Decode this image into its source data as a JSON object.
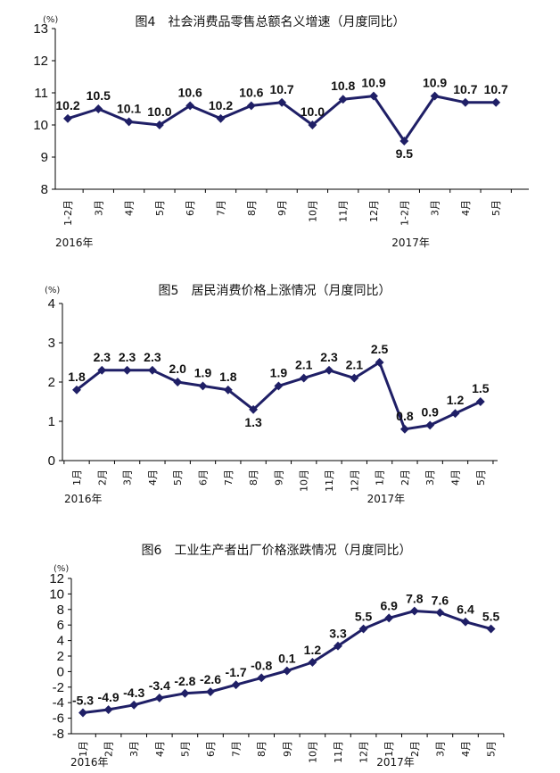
{
  "colors": {
    "series": "#1f1f66"
  },
  "chart_data": [
    {
      "type": "line",
      "title": "图4　社会消费品零售总额名义增速（月度同比）",
      "unit": "(%)",
      "ylim": [
        8,
        13
      ],
      "yticks": [
        "8",
        "9",
        "10",
        "11",
        "12",
        "13"
      ],
      "categories": [
        "1-2月",
        "3月",
        "4月",
        "5月",
        "6月",
        "7月",
        "8月",
        "9月",
        "10月",
        "11月",
        "12月",
        "1-2月",
        "3月",
        "4月",
        "5月"
      ],
      "values": [
        10.2,
        10.5,
        10.1,
        10.0,
        10.6,
        10.2,
        10.6,
        10.7,
        10.0,
        10.8,
        10.9,
        9.5,
        10.9,
        10.7,
        10.7
      ],
      "labels": [
        "10.2",
        "10.5",
        "10.1",
        "10.0",
        "10.6",
        "10.2",
        "10.6",
        "10.7",
        "10.0",
        "10.8",
        "10.9",
        "9.5",
        "10.9",
        "10.7",
        "10.7"
      ],
      "label_below": [
        11
      ],
      "years": [
        {
          "text": "2016年",
          "index": 0
        },
        {
          "text": "2017年",
          "index": 11
        }
      ],
      "grid": false
    },
    {
      "type": "line",
      "title": "图5　居民消费价格上涨情况（月度同比）",
      "unit": "(%)",
      "ylim": [
        0,
        4
      ],
      "yticks": [
        "0",
        "1",
        "2",
        "3",
        "4"
      ],
      "categories": [
        "1月",
        "2月",
        "3月",
        "4月",
        "5月",
        "6月",
        "7月",
        "8月",
        "9月",
        "10月",
        "11月",
        "12月",
        "1月",
        "2月",
        "3月",
        "4月",
        "5月"
      ],
      "values": [
        1.8,
        2.3,
        2.3,
        2.3,
        2.0,
        1.9,
        1.8,
        1.3,
        1.9,
        2.1,
        2.3,
        2.1,
        2.5,
        0.8,
        0.9,
        1.2,
        1.5
      ],
      "labels": [
        "1.8",
        "2.3",
        "2.3",
        "2.3",
        "2.0",
        "1.9",
        "1.8",
        "1.3",
        "1.9",
        "2.1",
        "2.3",
        "2.1",
        "2.5",
        "0.8",
        "0.9",
        "1.2",
        "1.5"
      ],
      "label_below": [
        7
      ],
      "years": [
        {
          "text": "2016年",
          "index": 0
        },
        {
          "text": "2017年",
          "index": 12
        }
      ],
      "grid": false
    },
    {
      "type": "line",
      "title": "图6　工业生产者出厂价格涨跌情况（月度同比）",
      "unit": "(%)",
      "ylim": [
        -8,
        12
      ],
      "yticks": [
        "-8",
        "-6",
        "-4",
        "-2",
        "0",
        "2",
        "4",
        "6",
        "8",
        "10",
        "12"
      ],
      "categories": [
        "1月",
        "2月",
        "3月",
        "4月",
        "5月",
        "6月",
        "7月",
        "8月",
        "9月",
        "10月",
        "11月",
        "12月",
        "1月",
        "2月",
        "3月",
        "4月",
        "5月"
      ],
      "values": [
        -5.3,
        -4.9,
        -4.3,
        -3.4,
        -2.8,
        -2.6,
        -1.7,
        -0.8,
        0.1,
        1.2,
        3.3,
        5.5,
        6.9,
        7.8,
        7.6,
        6.4,
        5.5
      ],
      "labels": [
        "-5.3",
        "-4.9",
        "-4.3",
        "-3.4",
        "-2.8",
        "-2.6",
        "-1.7",
        "-0.8",
        "0.1",
        "1.2",
        "3.3",
        "5.5",
        "6.9",
        "7.8",
        "7.6",
        "6.4",
        "5.5"
      ],
      "label_below": [],
      "years": [
        {
          "text": "2016年",
          "index": 0
        },
        {
          "text": "2017年",
          "index": 12
        }
      ],
      "grid": false
    }
  ]
}
